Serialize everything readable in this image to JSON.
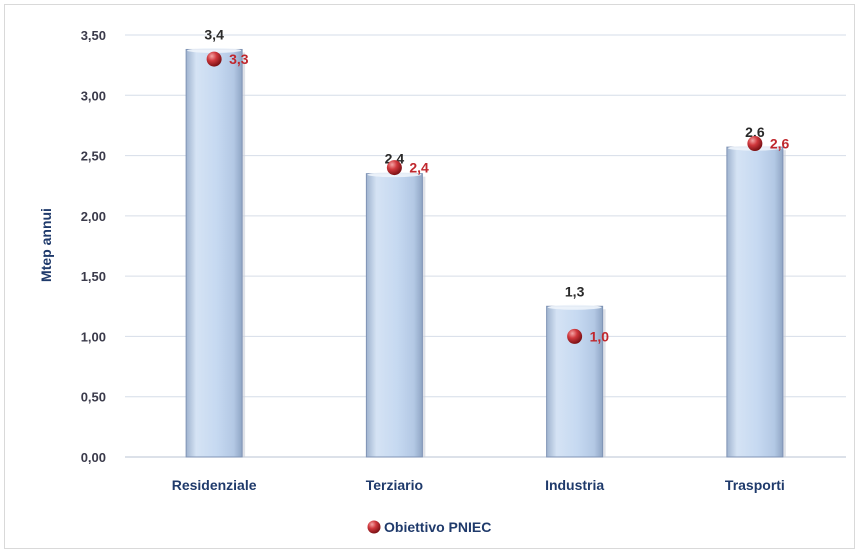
{
  "chart_data": {
    "type": "bar",
    "categories": [
      "Residenziale",
      "Terziario",
      "Industria",
      "Trasporti"
    ],
    "values": [
      3.38,
      2.35,
      1.25,
      2.57
    ],
    "value_labels": [
      "3,4",
      "2,4",
      "1,3",
      "2,6"
    ],
    "series": [
      {
        "name": "Obiettivo PNIEC",
        "type": "marker",
        "values": [
          3.3,
          2.4,
          1.0,
          2.6
        ],
        "labels": [
          "3,3",
          "2,4",
          "1,0",
          "2,6"
        ]
      }
    ],
    "xlabel": "",
    "ylabel": "Mtep annui",
    "ylim": [
      0,
      3.5
    ],
    "yticks": [
      "0,00",
      "0,50",
      "1,00",
      "1,50",
      "2,00",
      "2,50",
      "3,00",
      "3,50"
    ],
    "grid": true,
    "legend_position": "bottom",
    "colors": {
      "bar_fill": "#c6d9f1",
      "bar_edge": "#7f93b5",
      "marker": "#c0272d",
      "target_label": "#c0272d",
      "grid": "#d6dde8"
    }
  }
}
